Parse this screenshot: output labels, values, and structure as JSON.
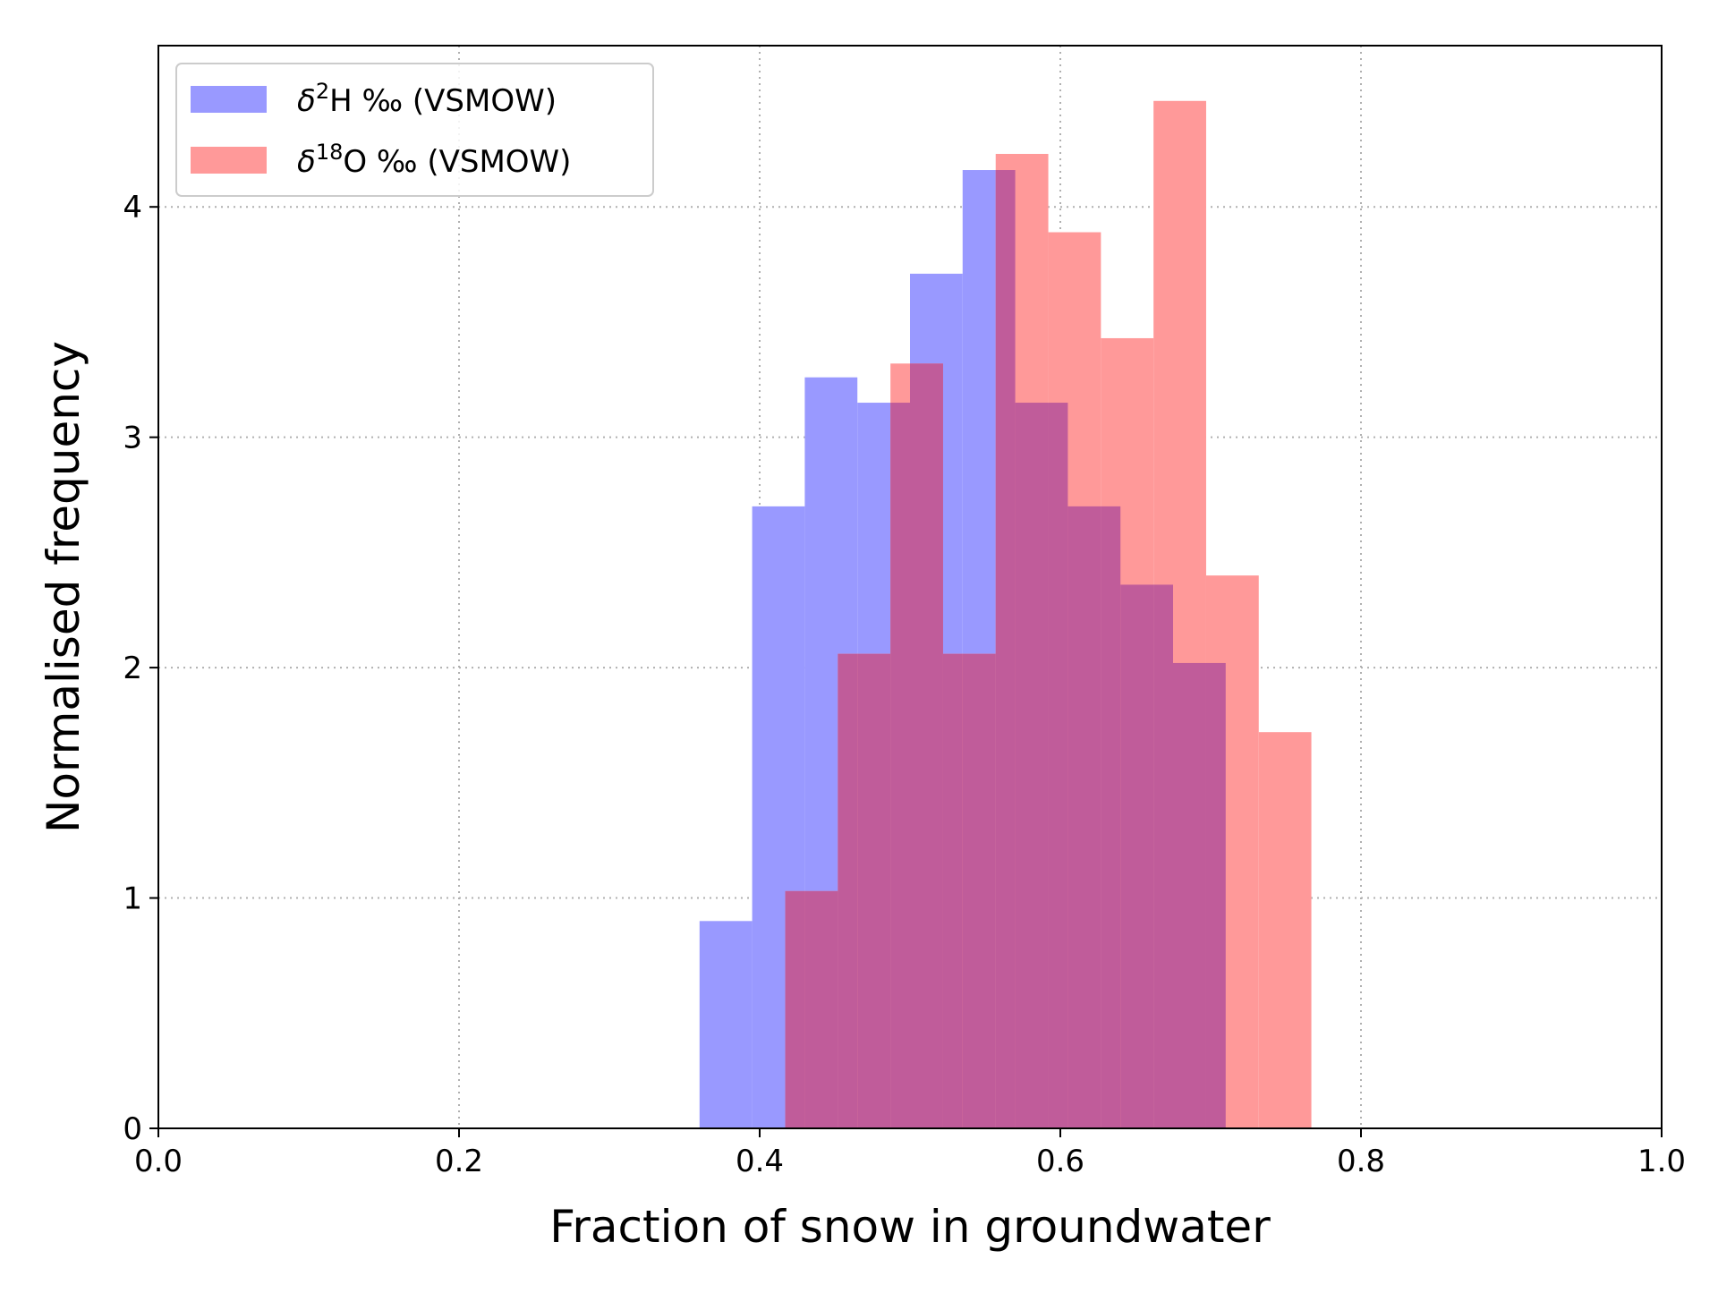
{
  "chart_data": {
    "type": "histogram",
    "xlabel": "Fraction of snow in groundwater",
    "ylabel": "Normalised frequency",
    "xlim": [
      0.0,
      1.0
    ],
    "ylim": [
      0,
      4.7
    ],
    "xticks": [
      "0.0",
      "0.2",
      "0.4",
      "0.6",
      "0.8",
      "1.0"
    ],
    "yticks": [
      "0",
      "1",
      "2",
      "3",
      "4"
    ],
    "grid": true,
    "legend_placement": "top-left",
    "series": [
      {
        "name": "δ²H ‰ (VSMOW)",
        "label_parts": {
          "pre": "δ",
          "sup": "2",
          "post": "H ‰ (VSMOW)"
        },
        "color": "#9999ff",
        "bins": [
          {
            "x0": 0.36,
            "x1": 0.395,
            "value": 0.9
          },
          {
            "x0": 0.395,
            "x1": 0.43,
            "value": 2.7
          },
          {
            "x0": 0.43,
            "x1": 0.465,
            "value": 3.26
          },
          {
            "x0": 0.465,
            "x1": 0.5,
            "value": 3.15
          },
          {
            "x0": 0.5,
            "x1": 0.535,
            "value": 3.71
          },
          {
            "x0": 0.535,
            "x1": 0.57,
            "value": 4.16
          },
          {
            "x0": 0.57,
            "x1": 0.605,
            "value": 3.15
          },
          {
            "x0": 0.605,
            "x1": 0.64,
            "value": 2.7
          },
          {
            "x0": 0.64,
            "x1": 0.675,
            "value": 2.36
          },
          {
            "x0": 0.675,
            "x1": 0.71,
            "value": 2.02
          }
        ]
      },
      {
        "name": "δ¹⁸O ‰ (VSMOW)",
        "label_parts": {
          "pre": "δ",
          "sup": "18",
          "post": "O ‰ (VSMOW)"
        },
        "color": "#ff9999",
        "bins": [
          {
            "x0": 0.417,
            "x1": 0.452,
            "value": 1.03
          },
          {
            "x0": 0.452,
            "x1": 0.487,
            "value": 2.06
          },
          {
            "x0": 0.487,
            "x1": 0.522,
            "value": 3.32
          },
          {
            "x0": 0.522,
            "x1": 0.557,
            "value": 2.06
          },
          {
            "x0": 0.557,
            "x1": 0.592,
            "value": 4.23
          },
          {
            "x0": 0.592,
            "x1": 0.627,
            "value": 3.89
          },
          {
            "x0": 0.627,
            "x1": 0.662,
            "value": 3.43
          },
          {
            "x0": 0.662,
            "x1": 0.697,
            "value": 4.46
          },
          {
            "x0": 0.697,
            "x1": 0.732,
            "value": 2.4
          },
          {
            "x0": 0.732,
            "x1": 0.767,
            "value": 1.72
          }
        ]
      }
    ],
    "overlap_color": "#c05c9a"
  }
}
